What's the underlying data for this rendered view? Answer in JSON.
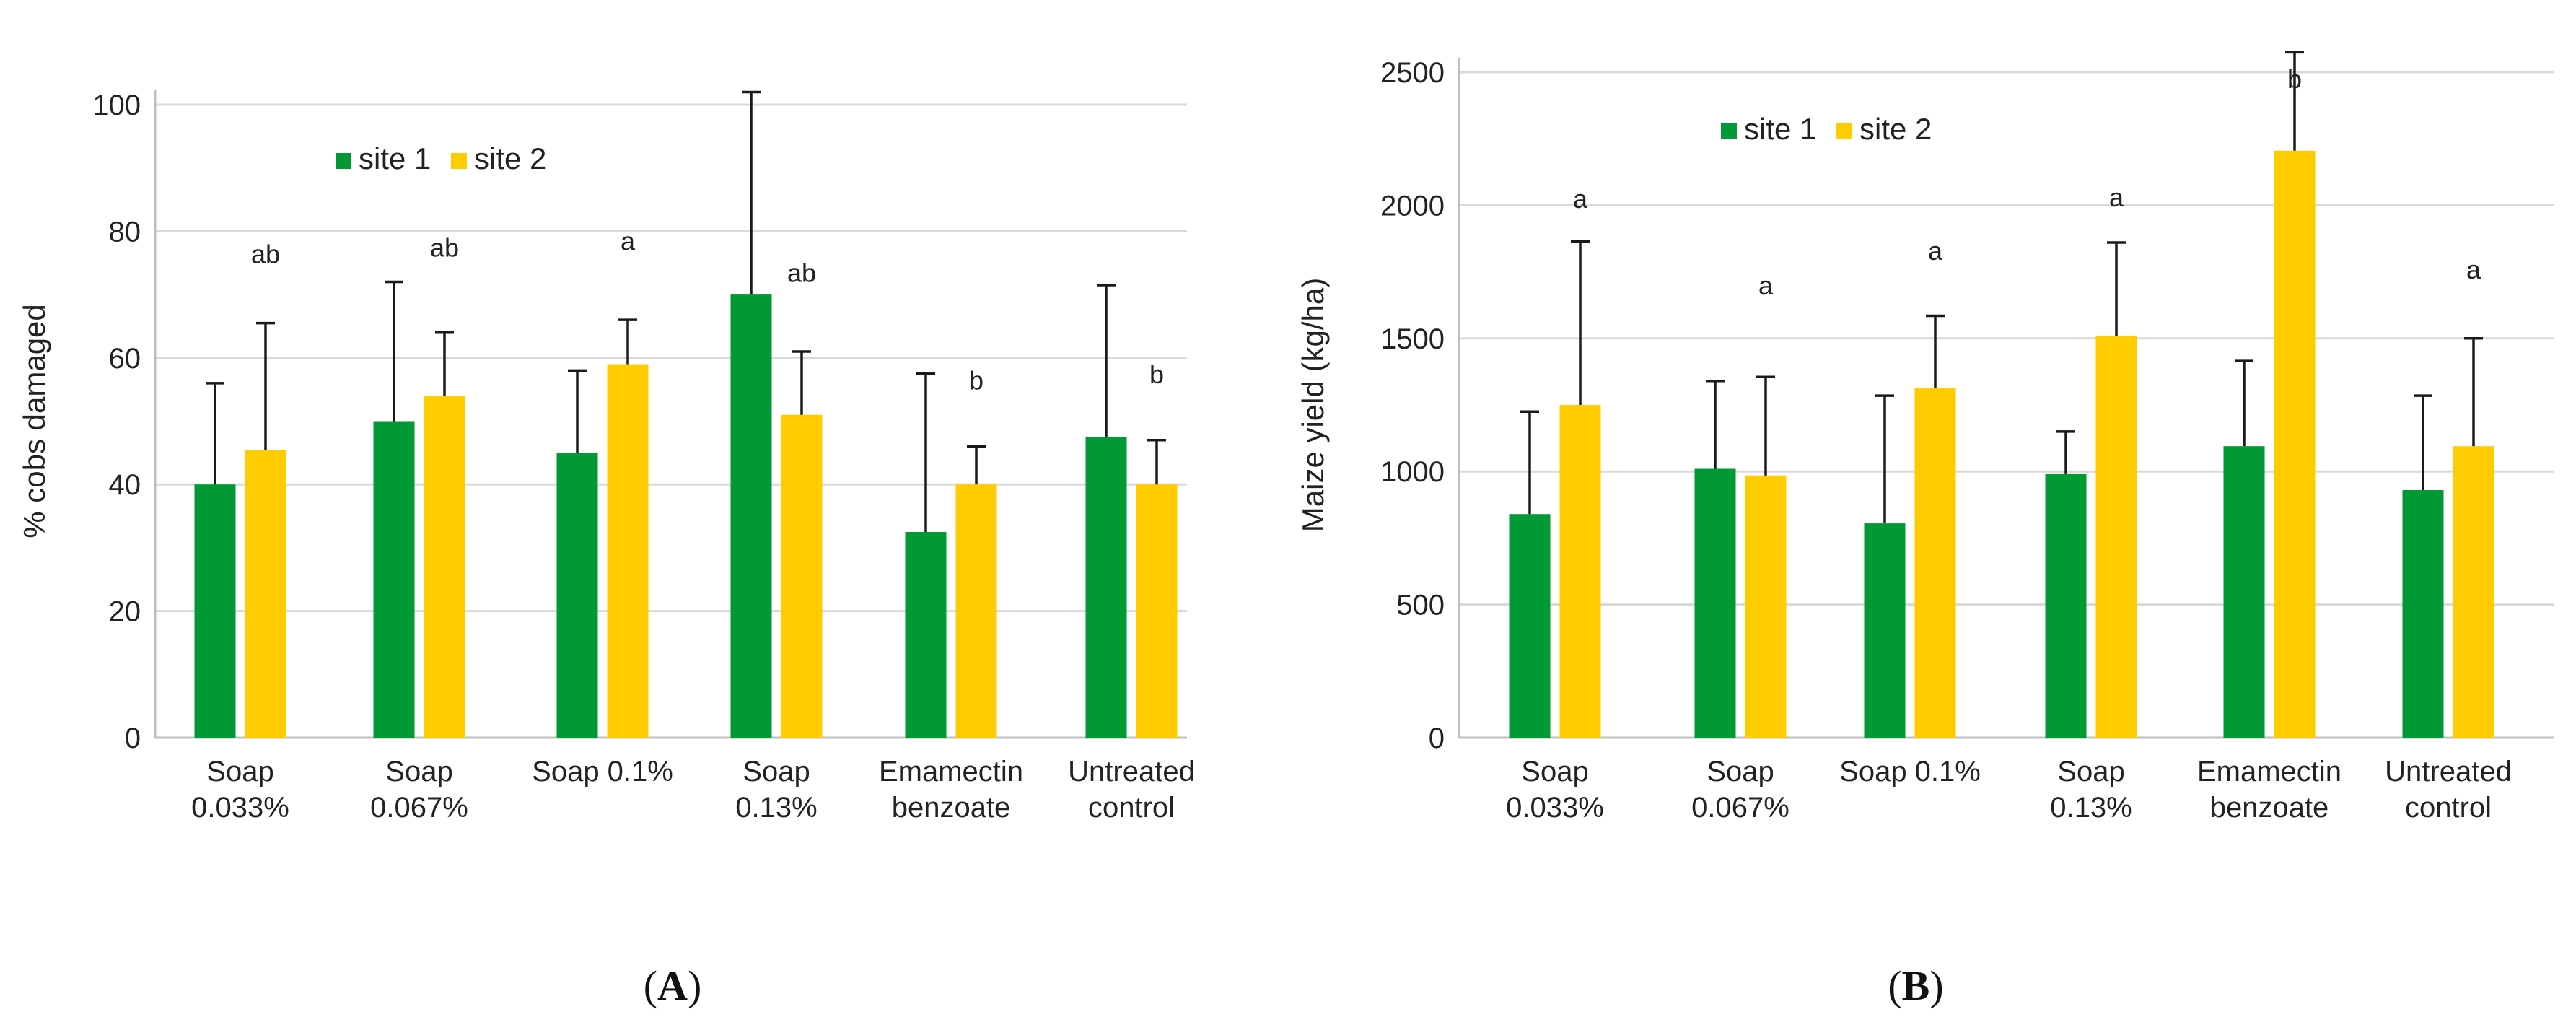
{
  "chart_data": [
    {
      "id": "A",
      "type": "bar",
      "panel_label": "A",
      "title": "",
      "xlabel": "",
      "ylabel": "% cobs damaged",
      "ylim": [
        0,
        100
      ],
      "yticks": [
        0,
        20,
        40,
        60,
        80,
        100
      ],
      "yticks_labels": [
        "0",
        "20",
        "40",
        "60",
        "80",
        "100"
      ],
      "grid": true,
      "legend_position": "top-left",
      "categories": [
        [
          "Soap",
          "0.033%"
        ],
        [
          "Soap",
          "0.067%"
        ],
        [
          "Soap 0.1%"
        ],
        [
          "Soap",
          "0.13%"
        ],
        [
          "Emamectin",
          "benzoate"
        ],
        [
          "Untreated",
          "control"
        ]
      ],
      "series": [
        {
          "name": "site 1",
          "color": "#009933",
          "values": [
            40,
            50,
            45,
            70,
            32.5,
            47.5
          ],
          "errors": [
            16,
            22,
            13,
            32,
            25,
            24
          ]
        },
        {
          "name": "site 2",
          "color": "#ffcc00",
          "values": [
            45.5,
            54,
            59,
            51,
            40,
            40
          ],
          "errors": [
            20,
            10,
            7,
            10,
            6,
            7
          ]
        }
      ],
      "significance_letters": [
        "ab",
        "ab",
        "a",
        "ab",
        "b",
        "b"
      ],
      "significance_y": [
        75,
        76,
        77,
        72,
        55,
        56
      ]
    },
    {
      "id": "B",
      "type": "bar",
      "panel_label": "B",
      "title": "",
      "xlabel": "",
      "ylabel": "Maize yield (kg/ha)",
      "ylim": [
        0,
        2500
      ],
      "yticks": [
        0,
        500,
        1000,
        1500,
        2000,
        2500
      ],
      "yticks_labels": [
        "0",
        "500",
        "1000",
        "1500",
        "2000",
        "2500"
      ],
      "grid": true,
      "legend_position": "top-left",
      "categories": [
        [
          "Soap",
          "0.033%"
        ],
        [
          "Soap",
          "0.067%"
        ],
        [
          "Soap 0.1%"
        ],
        [
          "Soap",
          "0.13%"
        ],
        [
          "Emamectin",
          "benzoate"
        ],
        [
          "Untreated",
          "control"
        ]
      ],
      "series": [
        {
          "name": "site 1",
          "color": "#009933",
          "values": [
            840,
            1010,
            805,
            990,
            1095,
            930
          ],
          "errors": [
            385,
            330,
            480,
            160,
            320,
            355
          ]
        },
        {
          "name": "site 2",
          "color": "#ffcc00",
          "values": [
            1250,
            985,
            1315,
            1510,
            2205,
            1095
          ],
          "errors": [
            615,
            370,
            270,
            350,
            370,
            405
          ]
        }
      ],
      "significance_letters": [
        "a",
        "a",
        "a",
        "a",
        "b",
        "a"
      ],
      "significance_y": [
        1990,
        1665,
        1795,
        1995,
        2440,
        1725
      ]
    }
  ]
}
